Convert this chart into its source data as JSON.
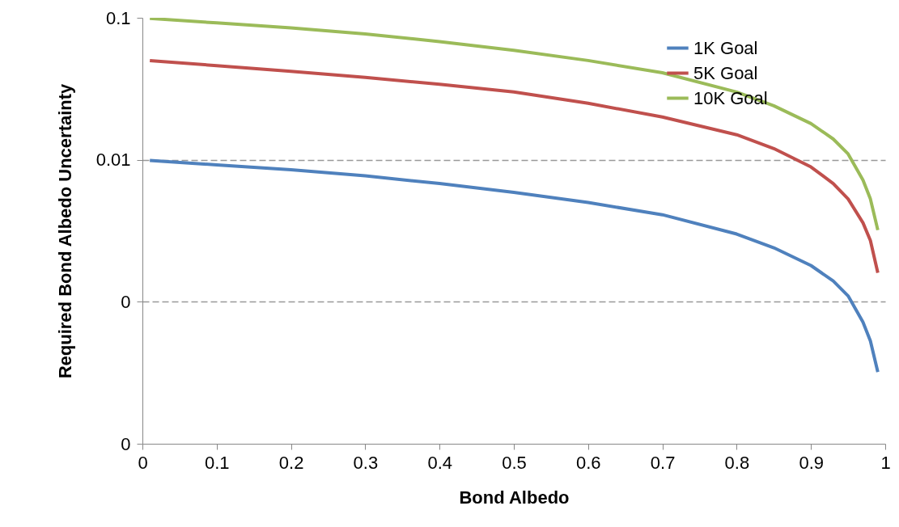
{
  "chart_data": {
    "type": "line",
    "xlabel": "Bond Albedo",
    "ylabel": "Required Bond Albedo Uncertainty",
    "log": "y",
    "grid": "y",
    "line_style": "solid",
    "legend": "top right",
    "x": [
      0.01,
      0.1,
      0.2,
      0.3,
      0.4,
      0.5,
      0.6,
      0.7,
      0.8,
      0.85,
      0.9,
      0.93,
      0.95,
      0.97,
      0.98,
      0.99
    ],
    "xlim": [
      0,
      1
    ],
    "xticks": [
      0,
      0.1,
      0.2,
      0.3,
      0.4,
      0.5,
      0.6,
      0.7,
      0.8,
      0.9,
      1
    ],
    "ylim": [
      0.0001,
      0.1
    ],
    "yticks": [
      {
        "value": 0.0001,
        "label": "0"
      },
      {
        "value": 0.001,
        "label": "0"
      },
      0.01,
      0.1
    ],
    "series": [
      {
        "name": "1K Goal",
        "color": "#4f81bd",
        "values": [
          0.0099,
          0.0092,
          0.0085,
          0.0077,
          0.0068,
          0.0059,
          0.005,
          0.0041,
          0.003,
          0.0024,
          0.0018,
          0.0014,
          0.0011,
          0.00072,
          0.00053,
          0.00032
        ]
      },
      {
        "name": "5K Goal",
        "color": "#c0504d",
        "values": [
          0.05,
          0.046,
          0.042,
          0.038,
          0.034,
          0.03,
          0.025,
          0.02,
          0.015,
          0.012,
          0.0089,
          0.0068,
          0.0053,
          0.0036,
          0.0027,
          0.0016
        ]
      },
      {
        "name": "10K Goal",
        "color": "#9bbb59",
        "values": [
          0.099,
          0.092,
          0.085,
          0.077,
          0.068,
          0.059,
          0.05,
          0.041,
          0.03,
          0.024,
          0.018,
          0.014,
          0.011,
          0.0072,
          0.0053,
          0.0032
        ]
      }
    ]
  }
}
